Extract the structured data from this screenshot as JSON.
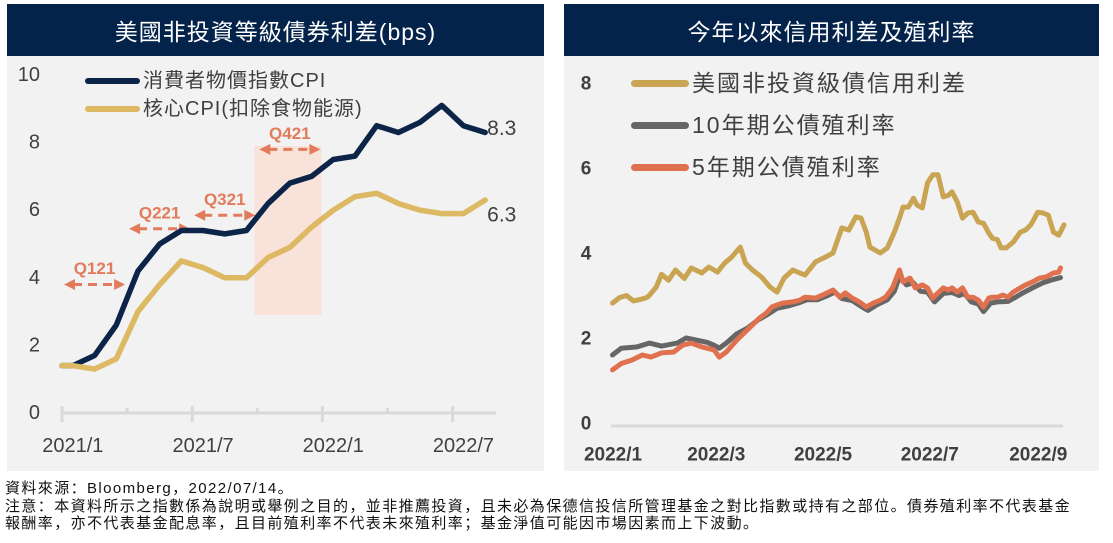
{
  "footnotes": {
    "source": "資料來源：Bloomberg，2022/07/14。",
    "note_lines": [
      "注意：本資料所示之指數係為說明或舉例之目的，並非推薦投資，且未必為保德信投信所管理基金之對比指數或持有之部位。債券殖利率不代表基金",
      "報酬率，亦不代表基金配息率，且目前殖利率不代表未來殖利率；基金淨值可能因市場因素而上下波動。"
    ]
  },
  "theme": {
    "header_bg": "#03234b",
    "panel_bg": "#f2f2f2"
  },
  "chart_data": [
    {
      "type": "line",
      "title": "美國非投資等級債券利差(bps)",
      "xlabel": "",
      "ylabel": "",
      "x": [
        "2021/1",
        "2021/2",
        "2021/3",
        "2021/4",
        "2021/5",
        "2021/6",
        "2021/7",
        "2021/8",
        "2021/9",
        "2021/10",
        "2021/11",
        "2021/12",
        "2022/1",
        "2022/2",
        "2022/3",
        "2022/4",
        "2022/5",
        "2022/6",
        "2022/7",
        "2022/8"
      ],
      "x_tick_labels": [
        "2021/1",
        "2021/7",
        "2022/1",
        "2022/7"
      ],
      "y_ticks": [
        "0",
        "2",
        "4",
        "6",
        "8",
        "10"
      ],
      "ylim": [
        0,
        10
      ],
      "grid": false,
      "legend": "top-left",
      "series": [
        {
          "name": "消費者物價指數CPI",
          "color": "#0b2447",
          "values": [
            1.4,
            1.7,
            2.6,
            4.2,
            5.0,
            5.4,
            5.4,
            5.3,
            5.4,
            6.2,
            6.8,
            7.0,
            7.5,
            7.6,
            8.5,
            8.3,
            8.6,
            9.1,
            8.5,
            8.3
          ],
          "end_label": "8.3"
        },
        {
          "name": "核心CPI(扣除食物能源)",
          "color": "#dcb962",
          "values": [
            1.4,
            1.3,
            1.6,
            3.0,
            3.8,
            4.5,
            4.3,
            4.0,
            4.0,
            4.6,
            4.9,
            5.5,
            6.0,
            6.4,
            6.5,
            6.2,
            6.0,
            5.9,
            5.9,
            6.3
          ],
          "end_label": "6.3"
        }
      ],
      "annotation_color": "#e27b5b",
      "shade_color": "#f9e2da",
      "annotations": [
        {
          "label": "Q121",
          "from": "2021/1",
          "to": "2021/3",
          "y": 3.8
        },
        {
          "label": "Q221",
          "from": "2021/4",
          "to": "2021/6",
          "y": 5.45
        },
        {
          "label": "Q321",
          "from": "2021/7",
          "to": "2021/9",
          "y": 5.85
        },
        {
          "label": "Q421",
          "from": "2021/10",
          "to": "2021/12",
          "y": 7.8,
          "shade_y_range": [
            2.9,
            7.9
          ]
        }
      ]
    },
    {
      "type": "line",
      "title": "今年以來信用利差及殖利率",
      "xlabel": "",
      "ylabel": "",
      "x_unit": "days since 2022-01-01",
      "x_ticks": [
        {
          "label": "2022/1",
          "day": 0
        },
        {
          "label": "2022/3",
          "day": 59
        },
        {
          "label": "2022/5",
          "day": 120
        },
        {
          "label": "2022/7",
          "day": 181
        },
        {
          "label": "2022/9",
          "day": 243
        }
      ],
      "y_ticks": [
        "0",
        "2",
        "4",
        "6",
        "8"
      ],
      "ylim": [
        0,
        8.6
      ],
      "grid": false,
      "legend": "top-left",
      "series": [
        {
          "name": "美國非投資級債信用利差",
          "color": "#c9a452",
          "points": [
            [
              2,
              2.82
            ],
            [
              6,
              2.95
            ],
            [
              10,
              3.0
            ],
            [
              14,
              2.87
            ],
            [
              19,
              2.92
            ],
            [
              22,
              2.96
            ],
            [
              24,
              3.05
            ],
            [
              27,
              3.2
            ],
            [
              30,
              3.5
            ],
            [
              34,
              3.36
            ],
            [
              38,
              3.6
            ],
            [
              43,
              3.4
            ],
            [
              47,
              3.65
            ],
            [
              53,
              3.53
            ],
            [
              57,
              3.67
            ],
            [
              62,
              3.55
            ],
            [
              66,
              3.76
            ],
            [
              70,
              3.9
            ],
            [
              75,
              4.14
            ],
            [
              78,
              3.76
            ],
            [
              82,
              3.6
            ],
            [
              87,
              3.44
            ],
            [
              92,
              3.2
            ],
            [
              96,
              3.08
            ],
            [
              100,
              3.41
            ],
            [
              105,
              3.6
            ],
            [
              109,
              3.53
            ],
            [
              112,
              3.48
            ],
            [
              118,
              3.79
            ],
            [
              124,
              3.91
            ],
            [
              128,
              4.0
            ],
            [
              133,
              4.59
            ],
            [
              137,
              4.54
            ],
            [
              141,
              4.85
            ],
            [
              144,
              4.82
            ],
            [
              147,
              4.49
            ],
            [
              149,
              4.14
            ],
            [
              155,
              4.0
            ],
            [
              159,
              4.12
            ],
            [
              163,
              4.49
            ],
            [
              166,
              4.82
            ],
            [
              168,
              5.08
            ],
            [
              171,
              5.08
            ],
            [
              174,
              5.29
            ],
            [
              176,
              5.13
            ],
            [
              179,
              5.06
            ],
            [
              182,
              5.65
            ],
            [
              185,
              5.84
            ],
            [
              188,
              5.84
            ],
            [
              191,
              5.32
            ],
            [
              194,
              5.36
            ],
            [
              196,
              5.44
            ],
            [
              199,
              5.2
            ],
            [
              202,
              4.82
            ],
            [
              205,
              4.94
            ],
            [
              208,
              4.96
            ],
            [
              211,
              4.73
            ],
            [
              214,
              4.7
            ],
            [
              217,
              4.47
            ],
            [
              219,
              4.35
            ],
            [
              222,
              4.31
            ],
            [
              224,
              4.12
            ],
            [
              227,
              4.12
            ],
            [
              231,
              4.26
            ],
            [
              235,
              4.49
            ],
            [
              238,
              4.54
            ],
            [
              241,
              4.66
            ],
            [
              245,
              4.96
            ],
            [
              248,
              4.94
            ],
            [
              251,
              4.89
            ],
            [
              254,
              4.49
            ],
            [
              257,
              4.42
            ],
            [
              260,
              4.66
            ]
          ]
        },
        {
          "name": "10年期公債殖利率",
          "color": "#666666",
          "points": [
            [
              2,
              1.6
            ],
            [
              7,
              1.76
            ],
            [
              16,
              1.79
            ],
            [
              23,
              1.88
            ],
            [
              30,
              1.81
            ],
            [
              39,
              1.88
            ],
            [
              44,
              2.0
            ],
            [
              50,
              1.95
            ],
            [
              56,
              1.9
            ],
            [
              60,
              1.83
            ],
            [
              63,
              1.76
            ],
            [
              67,
              1.88
            ],
            [
              73,
              2.1
            ],
            [
              79,
              2.23
            ],
            [
              85,
              2.42
            ],
            [
              90,
              2.54
            ],
            [
              96,
              2.7
            ],
            [
              102,
              2.75
            ],
            [
              108,
              2.82
            ],
            [
              113,
              2.9
            ],
            [
              119,
              2.9
            ],
            [
              125,
              3.0
            ],
            [
              129,
              3.08
            ],
            [
              133,
              2.93
            ],
            [
              139,
              2.88
            ],
            [
              145,
              2.72
            ],
            [
              148,
              2.65
            ],
            [
              153,
              2.78
            ],
            [
              159,
              2.9
            ],
            [
              163,
              3.1
            ],
            [
              166,
              3.45
            ],
            [
              170,
              3.25
            ],
            [
              174,
              3.3
            ],
            [
              178,
              3.1
            ],
            [
              182,
              3.08
            ],
            [
              186,
              2.85
            ],
            [
              191,
              3.05
            ],
            [
              196,
              3.07
            ],
            [
              200,
              3.0
            ],
            [
              203,
              3.05
            ],
            [
              207,
              2.85
            ],
            [
              211,
              2.8
            ],
            [
              214,
              2.62
            ],
            [
              218,
              2.82
            ],
            [
              222,
              2.85
            ],
            [
              228,
              2.86
            ],
            [
              232,
              2.95
            ],
            [
              236,
              3.05
            ],
            [
              242,
              3.18
            ],
            [
              248,
              3.3
            ],
            [
              254,
              3.38
            ],
            [
              258,
              3.42
            ]
          ]
        },
        {
          "name": "5年期公債殖利率",
          "color": "#e0714f",
          "points": [
            [
              2,
              1.25
            ],
            [
              7,
              1.4
            ],
            [
              13,
              1.48
            ],
            [
              19,
              1.6
            ],
            [
              24,
              1.55
            ],
            [
              30,
              1.65
            ],
            [
              37,
              1.67
            ],
            [
              42,
              1.83
            ],
            [
              47,
              1.88
            ],
            [
              53,
              1.79
            ],
            [
              60,
              1.72
            ],
            [
              63,
              1.55
            ],
            [
              67,
              1.67
            ],
            [
              73,
              1.95
            ],
            [
              79,
              2.19
            ],
            [
              86,
              2.47
            ],
            [
              90,
              2.59
            ],
            [
              93,
              2.73
            ],
            [
              99,
              2.82
            ],
            [
              105,
              2.85
            ],
            [
              109,
              2.89
            ],
            [
              112,
              2.96
            ],
            [
              118,
              2.94
            ],
            [
              122,
              3.01
            ],
            [
              128,
              3.13
            ],
            [
              132,
              2.96
            ],
            [
              135,
              3.06
            ],
            [
              139,
              2.94
            ],
            [
              143,
              2.85
            ],
            [
              147,
              2.73
            ],
            [
              151,
              2.82
            ],
            [
              155,
              2.89
            ],
            [
              158,
              2.96
            ],
            [
              162,
              3.18
            ],
            [
              166,
              3.6
            ],
            [
              168,
              3.32
            ],
            [
              172,
              3.41
            ],
            [
              175,
              3.18
            ],
            [
              179,
              3.25
            ],
            [
              182,
              3.18
            ],
            [
              185,
              2.94
            ],
            [
              188,
              3.06
            ],
            [
              191,
              3.18
            ],
            [
              194,
              3.13
            ],
            [
              196,
              3.18
            ],
            [
              199,
              3.08
            ],
            [
              202,
              3.18
            ],
            [
              205,
              2.96
            ],
            [
              208,
              2.96
            ],
            [
              211,
              2.89
            ],
            [
              214,
              2.73
            ],
            [
              217,
              2.94
            ],
            [
              219,
              2.96
            ],
            [
              222,
              2.96
            ],
            [
              225,
              3.01
            ],
            [
              228,
              2.96
            ],
            [
              231,
              3.08
            ],
            [
              235,
              3.18
            ],
            [
              238,
              3.25
            ],
            [
              242,
              3.32
            ],
            [
              246,
              3.41
            ],
            [
              250,
              3.44
            ],
            [
              254,
              3.53
            ],
            [
              257,
              3.55
            ],
            [
              258,
              3.65
            ]
          ]
        }
      ]
    }
  ]
}
